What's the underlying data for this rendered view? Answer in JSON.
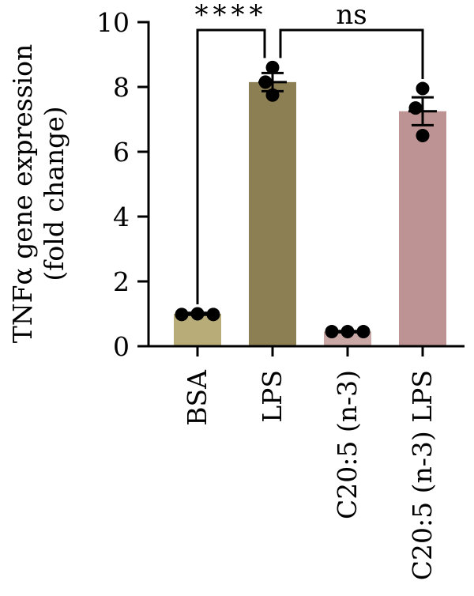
{
  "chart_data": {
    "type": "bar",
    "ylabel_lines": [
      "TNFα gene expression",
      "(fold change)"
    ],
    "ylim": [
      0,
      10
    ],
    "yticks": [
      0,
      2,
      4,
      6,
      8,
      10
    ],
    "categories": [
      "BSA",
      "LPS",
      "C20:5 (n-3)",
      "C20:5 (n-3) LPS"
    ],
    "values": [
      1.0,
      8.15,
      0.45,
      7.25
    ],
    "errors": [
      0.03,
      0.28,
      0.02,
      0.43
    ],
    "colors": [
      "#b8ad78",
      "#8b7f53",
      "#c9a8a6",
      "#bd9493"
    ],
    "points": [
      [
        0.98,
        1.0,
        0.98
      ],
      [
        8.6,
        8.15,
        7.75
      ],
      [
        0.45,
        0.45,
        0.45
      ],
      [
        7.95,
        7.35,
        6.5
      ]
    ],
    "comparisons": [
      {
        "from": 0,
        "to": 1,
        "label": "****"
      },
      {
        "from": 1,
        "to": 3,
        "label": "ns"
      }
    ]
  }
}
